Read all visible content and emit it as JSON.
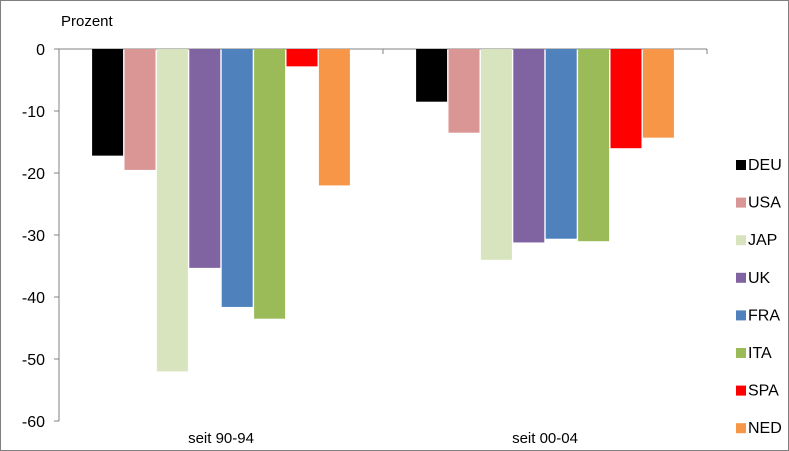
{
  "chart_data": {
    "type": "bar",
    "ylabel": "Prozent",
    "categories": [
      "seit 90-94",
      "seit 00-04"
    ],
    "ylim": [
      -60,
      0
    ],
    "yticks": [
      0,
      -10,
      -20,
      -30,
      -40,
      -50,
      -60
    ],
    "grid": false,
    "legend_position": "right",
    "series": [
      {
        "name": "DEU",
        "color": "#000000",
        "values": [
          -17.2,
          -8.5
        ]
      },
      {
        "name": "USA",
        "color": "#d99694",
        "values": [
          -19.5,
          -13.5
        ]
      },
      {
        "name": "JAP",
        "color": "#d7e4bd",
        "values": [
          -52,
          -34
        ]
      },
      {
        "name": "UK",
        "color": "#8064a2",
        "values": [
          -35.3,
          -31.2
        ]
      },
      {
        "name": "FRA",
        "color": "#4f81bd",
        "values": [
          -41.6,
          -30.6
        ]
      },
      {
        "name": "ITA",
        "color": "#9bbb59",
        "values": [
          -43.5,
          -31
        ]
      },
      {
        "name": "SPA",
        "color": "#ff0000",
        "values": [
          -2.8,
          -16
        ]
      },
      {
        "name": "NED",
        "color": "#f79646",
        "values": [
          -22,
          -14.3
        ]
      }
    ]
  }
}
